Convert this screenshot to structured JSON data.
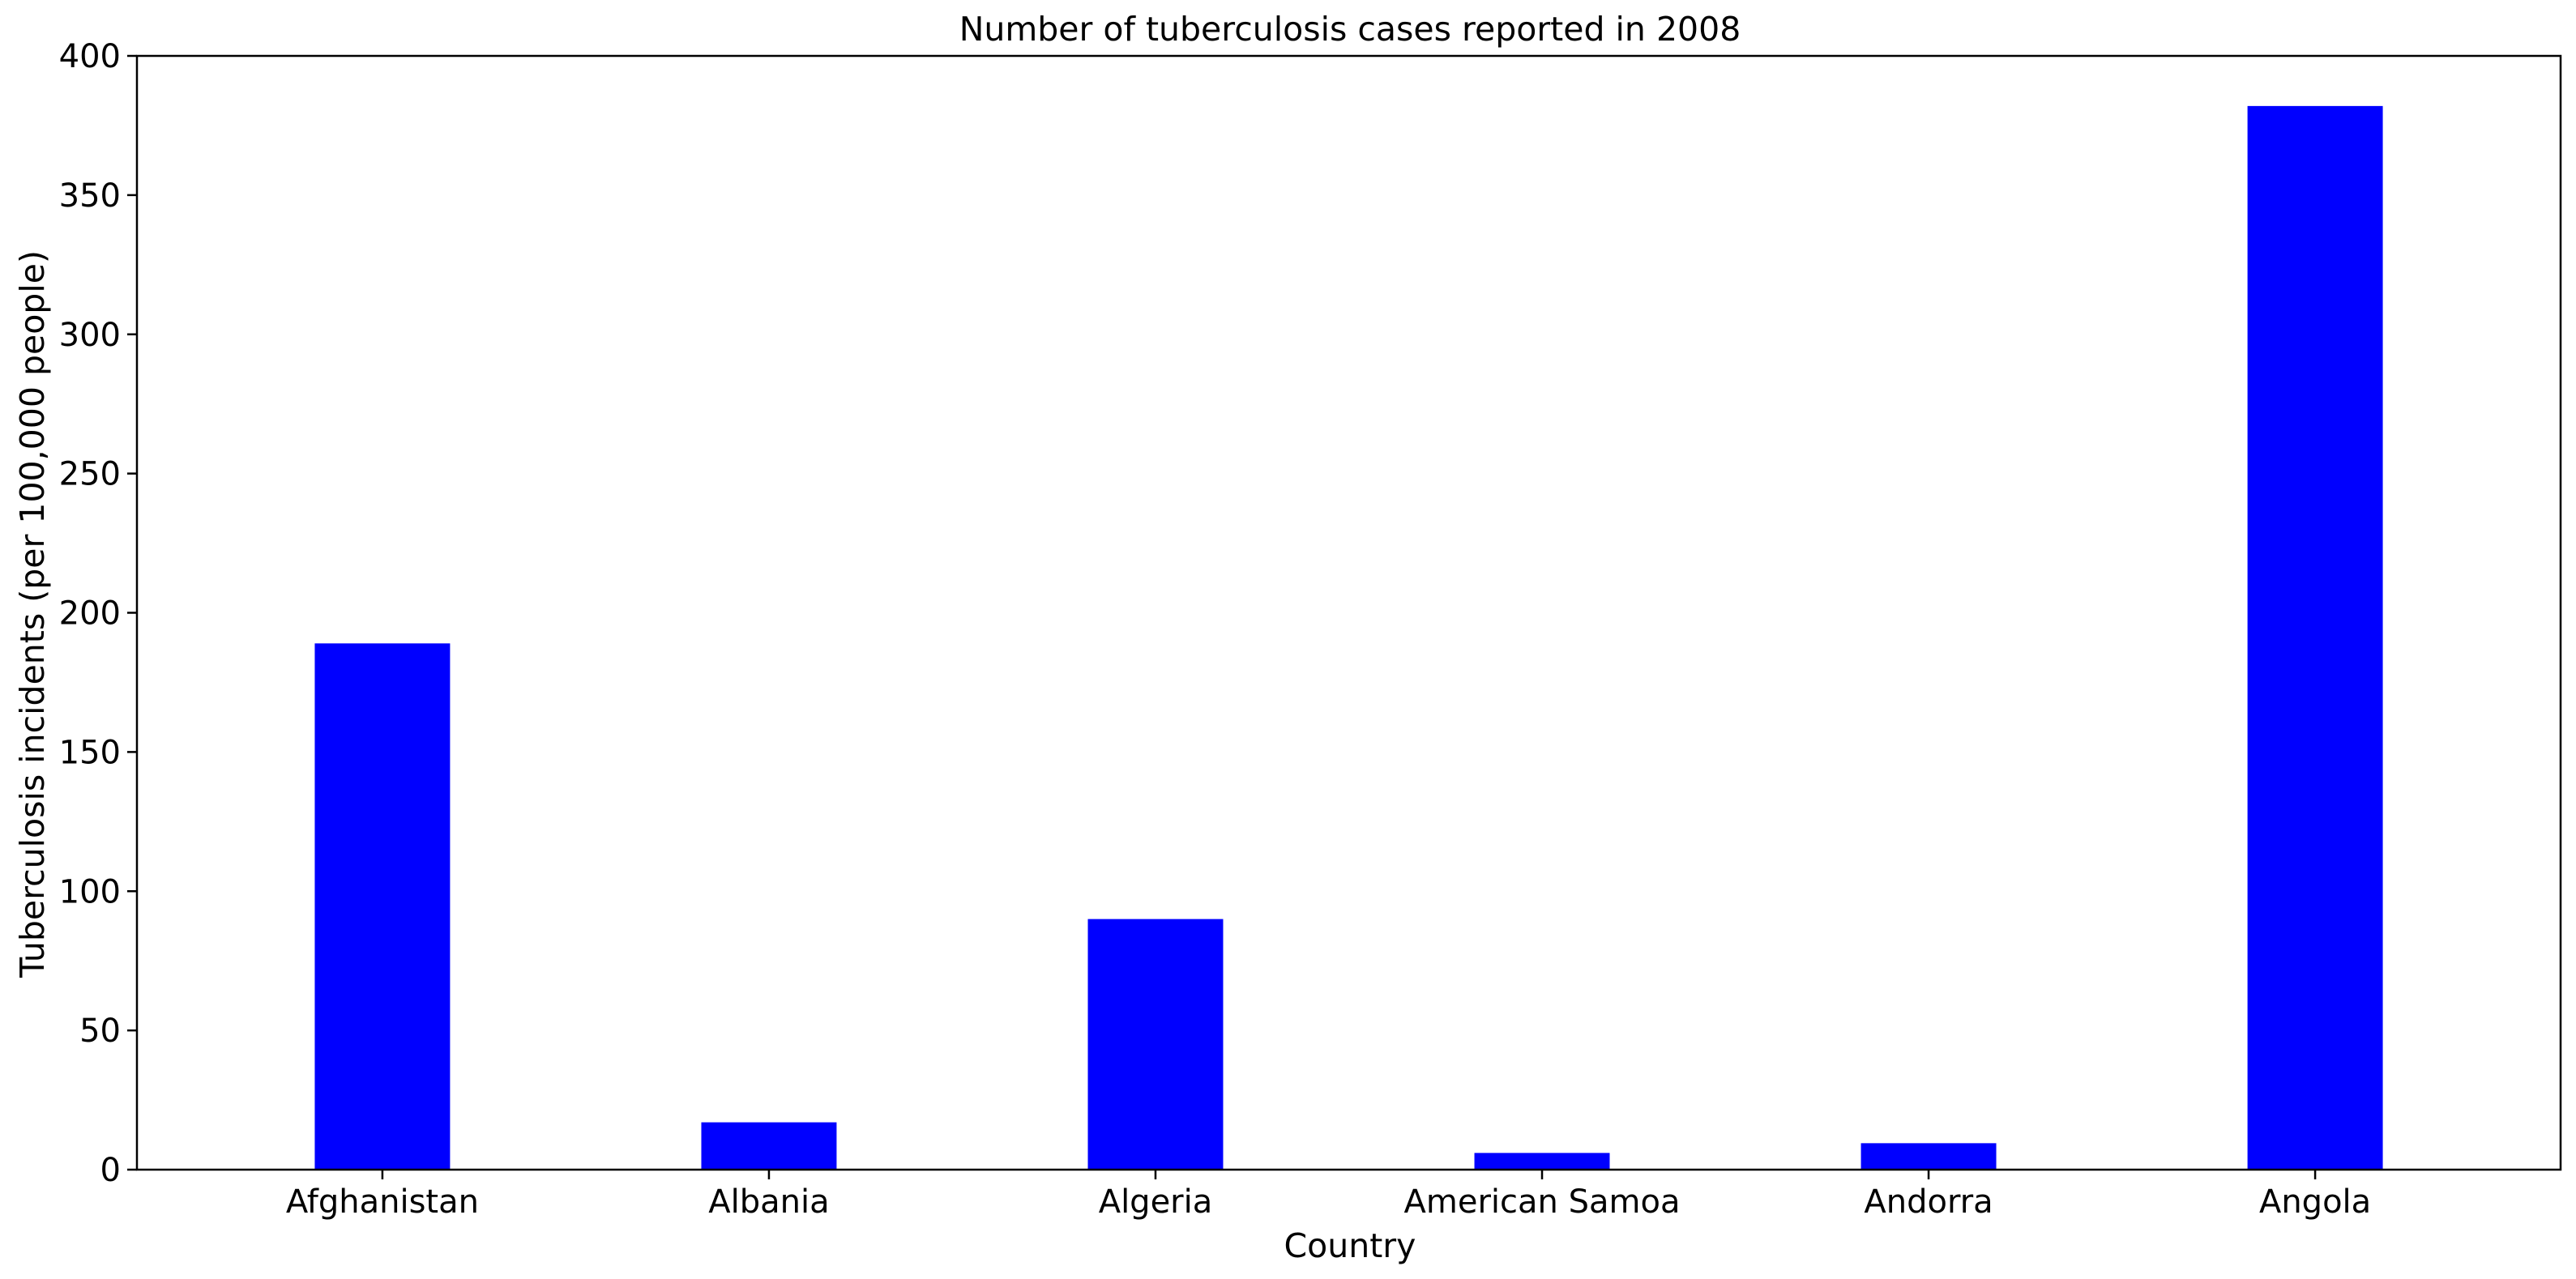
{
  "chart_data": {
    "type": "bar",
    "title": "Number of tuberculosis cases reported in 2008",
    "xlabel": "Country",
    "ylabel": "Tuberculosis incidents (per 100,000 people)",
    "categories": [
      "Afghanistan",
      "Albania",
      "Algeria",
      "American Samoa",
      "Andorra",
      "Angola"
    ],
    "values": [
      189,
      17,
      90,
      6,
      9.5,
      382
    ],
    "ylim": [
      0,
      400
    ],
    "yticks": [
      "0",
      "50",
      "100",
      "150",
      "200",
      "250",
      "300",
      "350",
      "400"
    ],
    "grid": false,
    "legend": false,
    "bar_color": "#0000ff"
  }
}
